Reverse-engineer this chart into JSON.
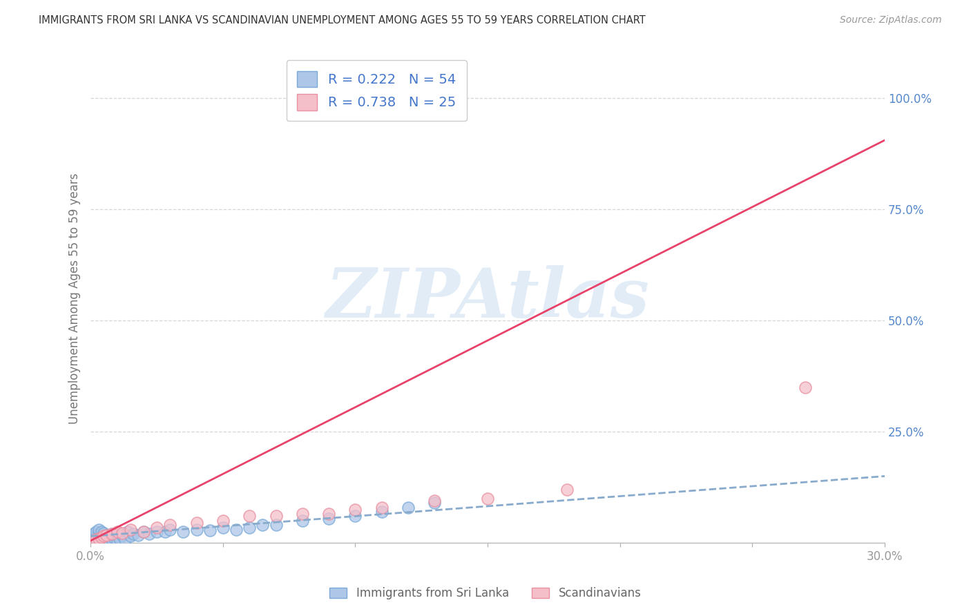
{
  "title": "IMMIGRANTS FROM SRI LANKA VS SCANDINAVIAN UNEMPLOYMENT AMONG AGES 55 TO 59 YEARS CORRELATION CHART",
  "source": "Source: ZipAtlas.com",
  "ylabel": "Unemployment Among Ages 55 to 59 years",
  "xlim": [
    0.0,
    0.3
  ],
  "ylim": [
    0.0,
    1.1
  ],
  "xtick_vals": [
    0.0,
    0.05,
    0.1,
    0.15,
    0.2,
    0.25,
    0.3
  ],
  "xtick_labels_show": [
    "0.0%",
    "",
    "",
    "",
    "",
    "",
    "30.0%"
  ],
  "ytick_vals": [
    0.0,
    0.25,
    0.5,
    0.75,
    1.0
  ],
  "ytick_labels": [
    "",
    "25.0%",
    "50.0%",
    "75.0%",
    "100.0%"
  ],
  "series1_label": "Immigrants from Sri Lanka",
  "series1_R": "0.222",
  "series1_N": "54",
  "series1_color": "#aec6e8",
  "series1_edge": "#7aaad8",
  "series2_label": "Scandinavians",
  "series2_R": "0.738",
  "series2_N": "25",
  "series2_color": "#f5bfca",
  "series2_edge": "#e890a0",
  "trend1_color": "#88aacc",
  "trend2_color": "#e8426a",
  "legend_text_color": "#4477cc",
  "title_color": "#333333",
  "source_color": "#999999",
  "ylabel_color": "#777777",
  "ytick_color": "#5588cc",
  "xtick_color": "#999999",
  "watermark_text": "ZIPAtlas",
  "watermark_color": "#d5e5f5",
  "bg_color": "#ffffff",
  "grid_color": "#cccccc",
  "series1_x": [
    0.001,
    0.001,
    0.001,
    0.001,
    0.002,
    0.002,
    0.002,
    0.002,
    0.002,
    0.003,
    0.003,
    0.003,
    0.003,
    0.004,
    0.004,
    0.004,
    0.005,
    0.005,
    0.005,
    0.006,
    0.006,
    0.007,
    0.007,
    0.008,
    0.008,
    0.009,
    0.01,
    0.01,
    0.011,
    0.012,
    0.013,
    0.014,
    0.015,
    0.016,
    0.018,
    0.02,
    0.022,
    0.025,
    0.028,
    0.03,
    0.035,
    0.04,
    0.045,
    0.05,
    0.055,
    0.06,
    0.065,
    0.07,
    0.08,
    0.09,
    0.1,
    0.11,
    0.12,
    0.13
  ],
  "series1_y": [
    0.005,
    0.01,
    0.015,
    0.02,
    0.005,
    0.008,
    0.012,
    0.018,
    0.025,
    0.005,
    0.01,
    0.02,
    0.03,
    0.008,
    0.015,
    0.025,
    0.005,
    0.012,
    0.022,
    0.008,
    0.018,
    0.005,
    0.015,
    0.008,
    0.02,
    0.01,
    0.005,
    0.015,
    0.01,
    0.018,
    0.008,
    0.025,
    0.015,
    0.02,
    0.018,
    0.025,
    0.02,
    0.025,
    0.025,
    0.03,
    0.025,
    0.03,
    0.028,
    0.035,
    0.03,
    0.035,
    0.04,
    0.04,
    0.05,
    0.055,
    0.06,
    0.07,
    0.08,
    0.09
  ],
  "series2_x": [
    0.001,
    0.002,
    0.003,
    0.004,
    0.005,
    0.006,
    0.008,
    0.01,
    0.012,
    0.015,
    0.02,
    0.025,
    0.03,
    0.04,
    0.05,
    0.06,
    0.07,
    0.08,
    0.09,
    0.1,
    0.11,
    0.13,
    0.15,
    0.18,
    0.27
  ],
  "series2_y": [
    0.005,
    0.008,
    0.01,
    0.012,
    0.015,
    0.018,
    0.02,
    0.025,
    0.022,
    0.03,
    0.025,
    0.035,
    0.04,
    0.045,
    0.05,
    0.06,
    0.06,
    0.065,
    0.065,
    0.075,
    0.08,
    0.095,
    0.1,
    0.12,
    0.35
  ],
  "trend1_slope": 0.45,
  "trend1_intercept": 0.015,
  "trend2_slope": 3.0,
  "trend2_intercept": 0.005
}
